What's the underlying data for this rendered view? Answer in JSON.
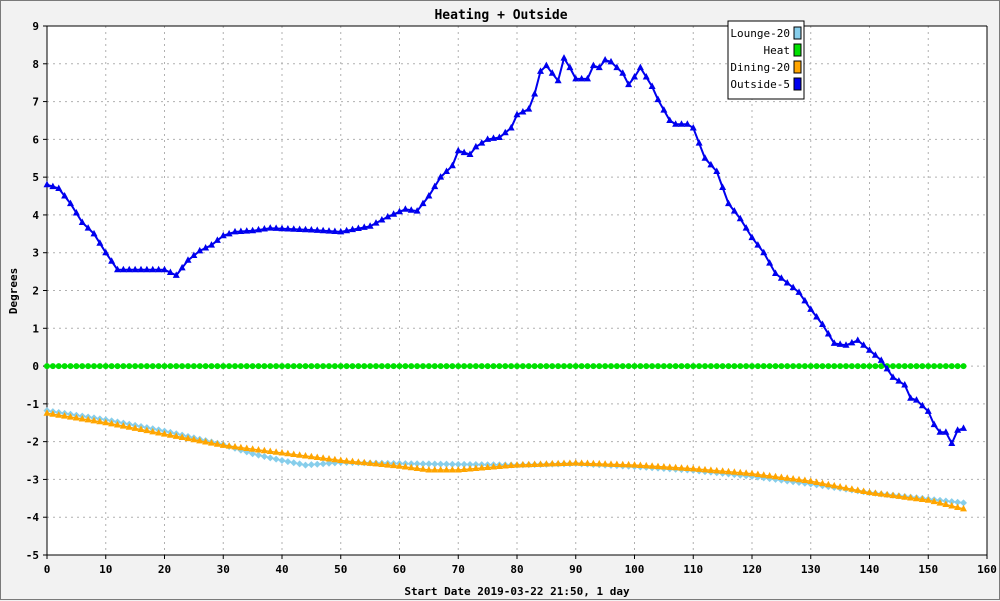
{
  "chart_data": {
    "type": "line",
    "title": "Heating + Outside",
    "xlabel": "Start Date 2019-03-22 21:50, 1 day",
    "ylabel": "Degrees",
    "xlim": [
      0,
      160
    ],
    "ylim": [
      -5,
      9
    ],
    "xticks": [
      0,
      10,
      20,
      30,
      40,
      50,
      60,
      70,
      80,
      90,
      100,
      110,
      120,
      130,
      140,
      150,
      160
    ],
    "yticks": [
      -5,
      -4,
      -3,
      -2,
      -1,
      0,
      1,
      2,
      3,
      4,
      5,
      6,
      7,
      8,
      9
    ],
    "grid": true,
    "legend_position": "top-right",
    "series": [
      {
        "name": "Lounge-20",
        "color": "#87ceeb",
        "marker": "diamond",
        "points": [
          [
            0,
            -1.18
          ],
          [
            10,
            -1.42
          ],
          [
            20,
            -1.72
          ],
          [
            30,
            -2.08
          ],
          [
            35,
            -2.32
          ],
          [
            40,
            -2.5
          ],
          [
            44,
            -2.62
          ],
          [
            50,
            -2.55
          ],
          [
            60,
            -2.58
          ],
          [
            70,
            -2.6
          ],
          [
            80,
            -2.62
          ],
          [
            90,
            -2.58
          ],
          [
            100,
            -2.66
          ],
          [
            110,
            -2.76
          ],
          [
            120,
            -2.92
          ],
          [
            130,
            -3.12
          ],
          [
            140,
            -3.35
          ],
          [
            150,
            -3.52
          ],
          [
            156,
            -3.62
          ]
        ]
      },
      {
        "name": "Heat",
        "color": "#00e000",
        "marker": "circle",
        "points": [
          [
            0,
            0
          ],
          [
            156,
            0
          ]
        ]
      },
      {
        "name": "Dining-20",
        "color": "#ffa500",
        "marker": "triangle",
        "points": [
          [
            0,
            -1.25
          ],
          [
            10,
            -1.5
          ],
          [
            20,
            -1.8
          ],
          [
            30,
            -2.1
          ],
          [
            40,
            -2.3
          ],
          [
            50,
            -2.5
          ],
          [
            60,
            -2.65
          ],
          [
            65,
            -2.75
          ],
          [
            70,
            -2.75
          ],
          [
            80,
            -2.62
          ],
          [
            90,
            -2.57
          ],
          [
            100,
            -2.62
          ],
          [
            110,
            -2.72
          ],
          [
            120,
            -2.85
          ],
          [
            130,
            -3.05
          ],
          [
            140,
            -3.35
          ],
          [
            150,
            -3.55
          ],
          [
            156,
            -3.78
          ]
        ]
      },
      {
        "name": "Outside-5",
        "color": "#0000ee",
        "marker": "triangle",
        "points": [
          [
            0,
            4.8
          ],
          [
            2,
            4.7
          ],
          [
            4,
            4.3
          ],
          [
            6,
            3.8
          ],
          [
            8,
            3.5
          ],
          [
            10,
            3.0
          ],
          [
            12,
            2.55
          ],
          [
            20,
            2.55
          ],
          [
            22,
            2.4
          ],
          [
            24,
            2.8
          ],
          [
            26,
            3.05
          ],
          [
            28,
            3.2
          ],
          [
            30,
            3.45
          ],
          [
            32,
            3.55
          ],
          [
            35,
            3.58
          ],
          [
            38,
            3.65
          ],
          [
            45,
            3.6
          ],
          [
            50,
            3.55
          ],
          [
            55,
            3.7
          ],
          [
            58,
            3.95
          ],
          [
            61,
            4.15
          ],
          [
            63,
            4.1
          ],
          [
            65,
            4.5
          ],
          [
            67,
            5.0
          ],
          [
            69,
            5.3
          ],
          [
            70,
            5.7
          ],
          [
            72,
            5.6
          ],
          [
            73,
            5.8
          ],
          [
            75,
            6.0
          ],
          [
            77,
            6.05
          ],
          [
            79,
            6.3
          ],
          [
            80,
            6.65
          ],
          [
            82,
            6.8
          ],
          [
            83,
            7.2
          ],
          [
            84,
            7.8
          ],
          [
            85,
            7.95
          ],
          [
            87,
            7.55
          ],
          [
            88,
            8.15
          ],
          [
            89,
            7.9
          ],
          [
            90,
            7.6
          ],
          [
            92,
            7.6
          ],
          [
            93,
            7.95
          ],
          [
            94,
            7.9
          ],
          [
            95,
            8.1
          ],
          [
            96,
            8.05
          ],
          [
            98,
            7.75
          ],
          [
            99,
            7.45
          ],
          [
            100,
            7.65
          ],
          [
            101,
            7.9
          ],
          [
            103,
            7.4
          ],
          [
            104,
            7.05
          ],
          [
            106,
            6.5
          ],
          [
            107,
            6.4
          ],
          [
            109,
            6.4
          ],
          [
            110,
            6.3
          ],
          [
            112,
            5.5
          ],
          [
            114,
            5.15
          ],
          [
            116,
            4.3
          ],
          [
            118,
            3.9
          ],
          [
            120,
            3.4
          ],
          [
            122,
            3.0
          ],
          [
            124,
            2.45
          ],
          [
            126,
            2.2
          ],
          [
            128,
            1.95
          ],
          [
            130,
            1.5
          ],
          [
            132,
            1.1
          ],
          [
            134,
            0.6
          ],
          [
            136,
            0.55
          ],
          [
            138,
            0.68
          ],
          [
            140,
            0.42
          ],
          [
            142,
            0.15
          ],
          [
            144,
            -0.3
          ],
          [
            146,
            -0.5
          ],
          [
            147,
            -0.85
          ],
          [
            148,
            -0.9
          ],
          [
            150,
            -1.2
          ],
          [
            151,
            -1.55
          ],
          [
            152,
            -1.75
          ],
          [
            153,
            -1.75
          ],
          [
            154,
            -2.05
          ],
          [
            155,
            -1.7
          ],
          [
            156,
            -1.65
          ]
        ]
      }
    ]
  }
}
